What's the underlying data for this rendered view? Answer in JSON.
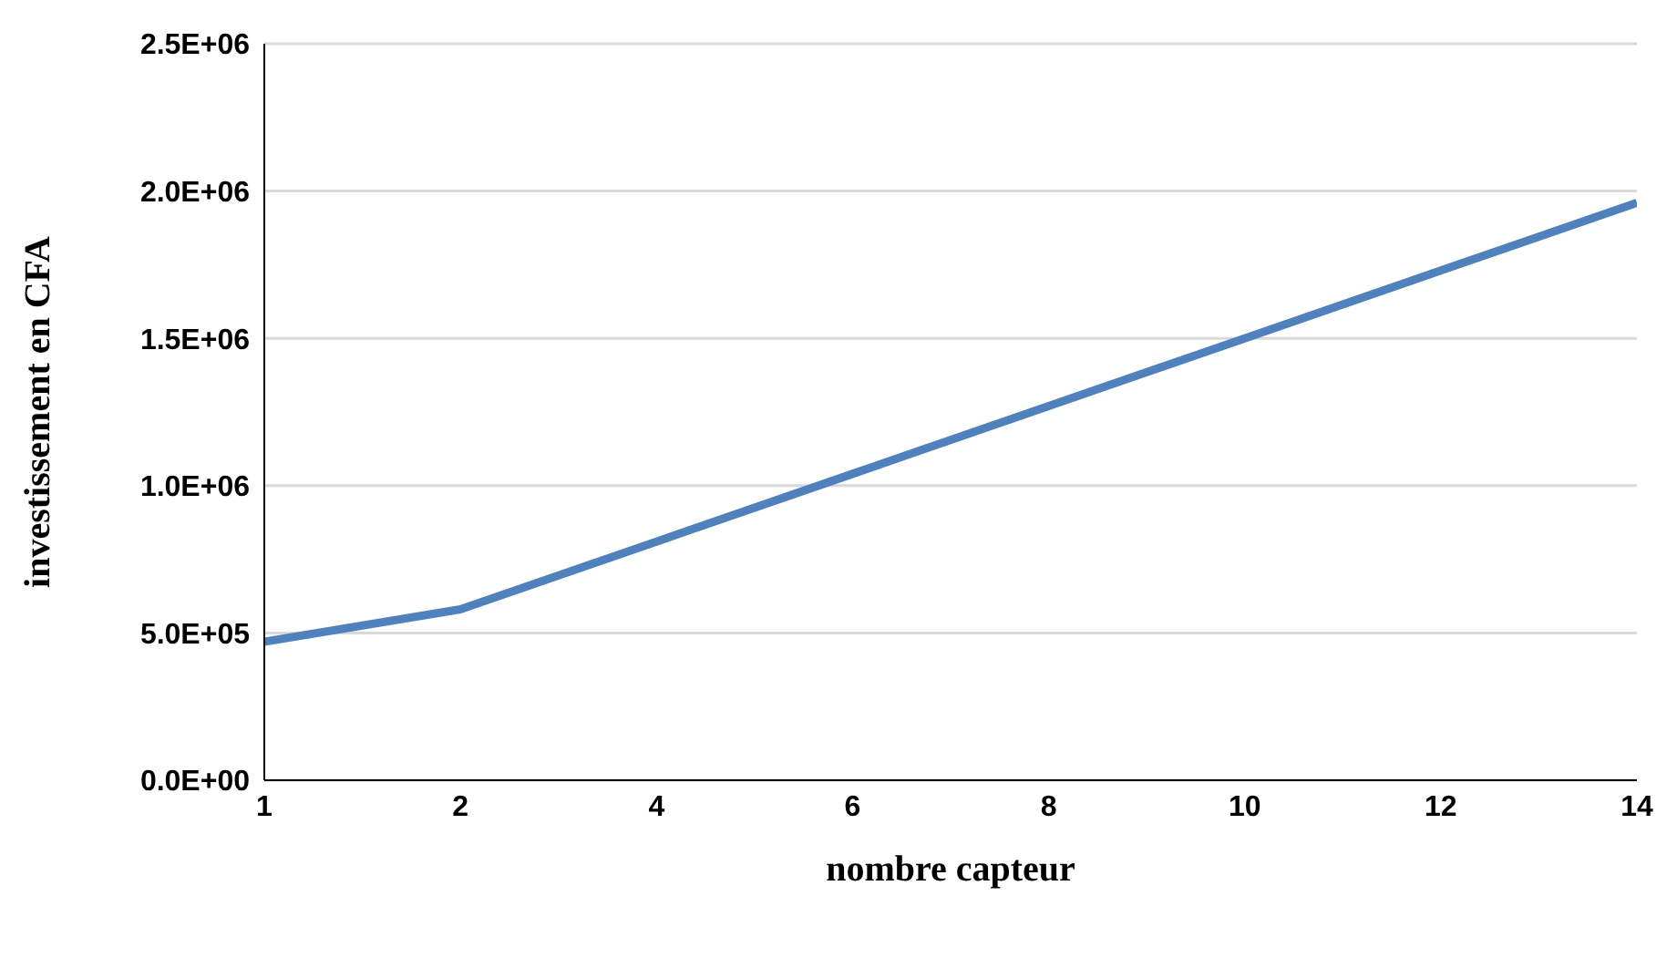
{
  "chart_data": {
    "type": "line",
    "xlabel": "nombre capteur",
    "ylabel": "investissement en CFA",
    "categories": [
      "1",
      "2",
      "4",
      "6",
      "8",
      "10",
      "12",
      "14"
    ],
    "series": [
      {
        "color": "#4f81bd",
        "values": [
          470000,
          580000,
          810000,
          1040000,
          1270000,
          1500000,
          1730000,
          1960000
        ]
      }
    ],
    "ylim": [
      0,
      2500000
    ],
    "yticks": [
      {
        "value": 0,
        "label": "0.0E+00"
      },
      {
        "value": 500000,
        "label": "5.0E+05"
      },
      {
        "value": 1000000,
        "label": "1.0E+06"
      },
      {
        "value": 1500000,
        "label": "1.5E+06"
      },
      {
        "value": 2000000,
        "label": "2.0E+06"
      },
      {
        "value": 2500000,
        "label": "2.5E+06"
      }
    ],
    "grid": "y",
    "legend": false,
    "marker": "none",
    "line_style": "solid"
  }
}
